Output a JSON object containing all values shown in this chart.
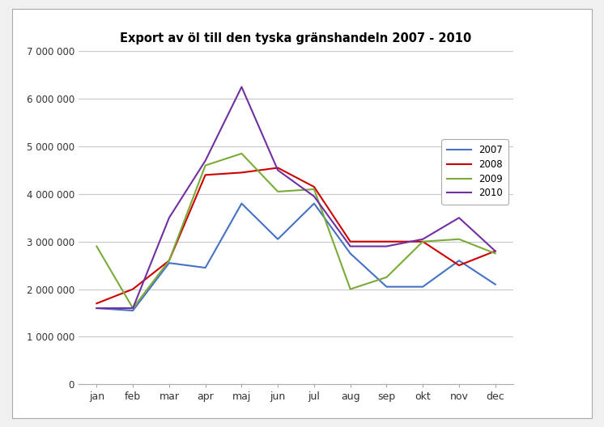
{
  "title": "Export av öl till den tyska gränshandeln 2007 - 2010",
  "months": [
    "jan",
    "feb",
    "mar",
    "apr",
    "maj",
    "jun",
    "jul",
    "aug",
    "sep",
    "okt",
    "nov",
    "dec"
  ],
  "series": {
    "2007": [
      1600000,
      1550000,
      2550000,
      2450000,
      3800000,
      3050000,
      3800000,
      2750000,
      2050000,
      2050000,
      2600000,
      2100000
    ],
    "2008": [
      1700000,
      2000000,
      2600000,
      4400000,
      4450000,
      4550000,
      4150000,
      3000000,
      3000000,
      3000000,
      2500000,
      2800000
    ],
    "2009": [
      2900000,
      1600000,
      2600000,
      4600000,
      4850000,
      4050000,
      4100000,
      2000000,
      2250000,
      3000000,
      3050000,
      2750000
    ],
    "2010": [
      1600000,
      1600000,
      3500000,
      4700000,
      6250000,
      4500000,
      3950000,
      2900000,
      2900000,
      3050000,
      3500000,
      2800000
    ]
  },
  "colors": {
    "2007": "#4472C4",
    "2008": "#CC0000",
    "2009": "#7AAB3A",
    "2010": "#7030A0"
  },
  "ylim": [
    0,
    7000000
  ],
  "yticks": [
    0,
    1000000,
    2000000,
    3000000,
    4000000,
    5000000,
    6000000,
    7000000
  ],
  "ytick_labels": [
    "0",
    "1 000 000",
    "2 000 000",
    "3 000 000",
    "4 000 000",
    "5 000 000",
    "6 000 000",
    "7 000 000"
  ],
  "outer_bg": "#f0f0f0",
  "plot_bg_color": "#ffffff",
  "grid_color": "#c8c8c8",
  "legend_years": [
    "2007",
    "2008",
    "2009",
    "2010"
  ]
}
